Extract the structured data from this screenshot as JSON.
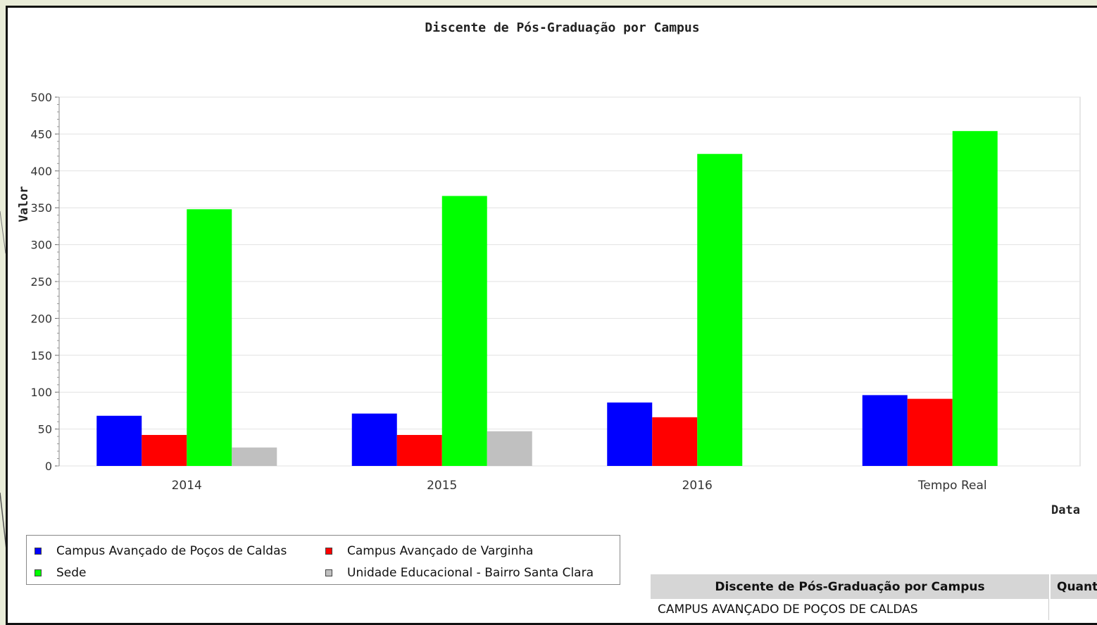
{
  "colors": {
    "page_background": "#e9ecd8",
    "series_blue": "#0000ff",
    "series_red": "#ff0000",
    "series_green": "#00ff00",
    "series_gray": "#c0c0c0"
  },
  "chart_data": {
    "type": "bar",
    "title": "Discente de Pós-Graduação por Campus",
    "xlabel": "Data",
    "ylabel": "Valor",
    "ylim": [
      0,
      500
    ],
    "yticks": [
      0,
      50,
      100,
      150,
      200,
      250,
      300,
      350,
      400,
      450,
      500
    ],
    "grid": true,
    "legend_position": "bottom-left",
    "categories": [
      "2014",
      "2015",
      "2016",
      "Tempo Real"
    ],
    "series": [
      {
        "name": "Campus Avançado de Poços de Caldas",
        "color": "#0000ff",
        "values": [
          68,
          71,
          86,
          96
        ]
      },
      {
        "name": "Campus Avançado de Varginha",
        "color": "#ff0000",
        "values": [
          42,
          42,
          66,
          91
        ]
      },
      {
        "name": "Sede",
        "color": "#00ff00",
        "values": [
          348,
          366,
          423,
          454
        ]
      },
      {
        "name": "Unidade Educacional - Bairro Santa Clara",
        "color": "#c0c0c0",
        "values": [
          25,
          47,
          null,
          null
        ]
      }
    ]
  },
  "table": {
    "header": [
      "Discente de Pós-Graduação por Campus",
      "Quant"
    ],
    "rows": [
      [
        "CAMPUS AVANÇADO DE POÇOS DE CALDAS",
        ""
      ]
    ]
  }
}
